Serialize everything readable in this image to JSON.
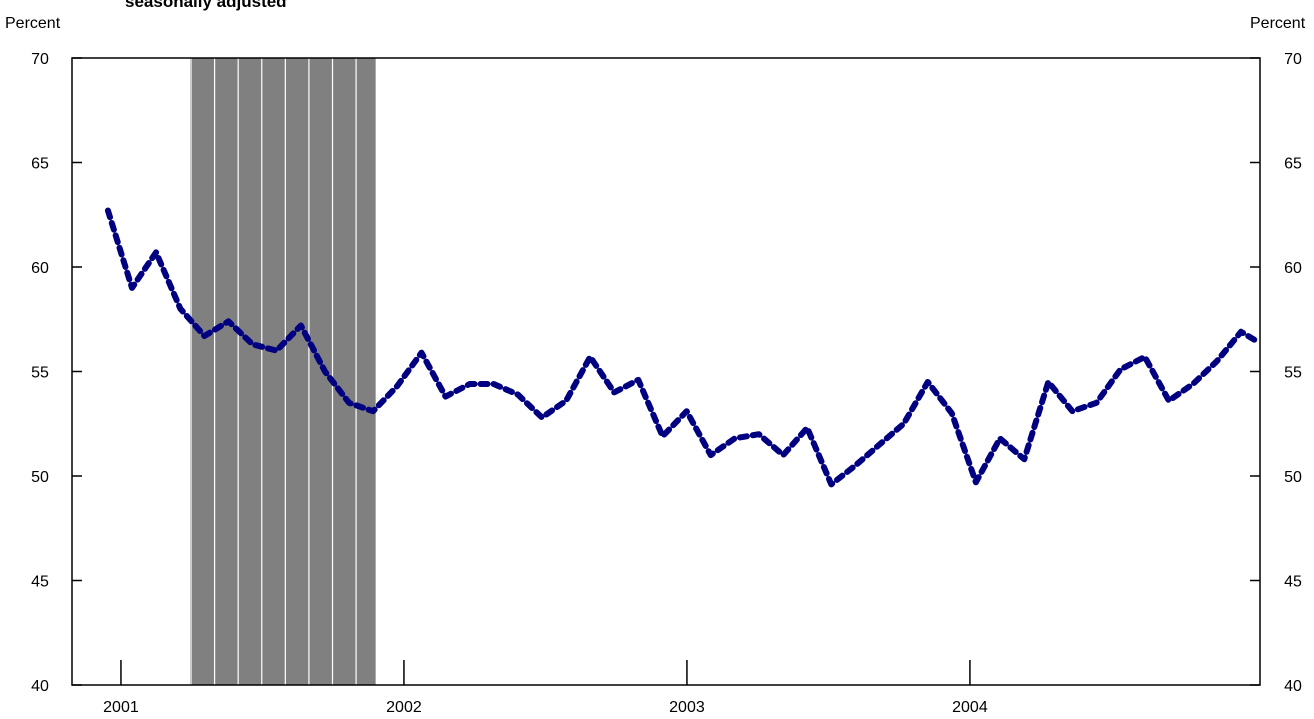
{
  "chart_data": {
    "type": "line",
    "title": "seasonally adjusted",
    "y_label": "Percent",
    "y2_label": "Percent",
    "x": [
      2000.954,
      2001.039,
      2001.124,
      2001.21,
      2001.295,
      2001.38,
      2001.465,
      2001.55,
      2001.636,
      2001.721,
      2001.806,
      2001.891,
      2001.976,
      2002.062,
      2002.147,
      2002.232,
      2002.317,
      2002.402,
      2002.488,
      2002.573,
      2002.658,
      2002.743,
      2002.828,
      2002.914,
      2002.999,
      2003.084,
      2003.169,
      2003.254,
      2003.34,
      2003.425,
      2003.51,
      2003.595,
      2003.68,
      2003.766,
      2003.851,
      2003.936,
      2004.021,
      2004.106,
      2004.192,
      2004.277,
      2004.362,
      2004.447,
      2004.532,
      2004.618,
      2004.703,
      2004.788,
      2004.873,
      2004.958,
      2005.02
    ],
    "series": [
      {
        "color": "#000080",
        "values": [
          62.7,
          59.0,
          60.7,
          58.0,
          56.7,
          57.4,
          56.3,
          56.0,
          57.2,
          55.0,
          53.5,
          53.1,
          54.3,
          55.9,
          53.8,
          54.4,
          54.4,
          53.9,
          52.8,
          53.6,
          55.7,
          54.0,
          54.6,
          51.9,
          53.1,
          51.0,
          51.8,
          52.0,
          51.0,
          52.3,
          49.6,
          50.5,
          51.5,
          52.5,
          54.5,
          53.0,
          49.7,
          51.8,
          50.8,
          54.5,
          53.1,
          53.5,
          55.1,
          55.7,
          53.6,
          54.4,
          55.5,
          56.9,
          56.4
        ]
      }
    ],
    "shaded_range": [
      2001.244,
      2001.9
    ],
    "shade_color": "#808080",
    "xlim": [
      2000.827,
      2005.025
    ],
    "xticks": [
      2001,
      2002,
      2003,
      2004
    ],
    "ylim": [
      40,
      70
    ],
    "yticks": [
      40,
      45,
      50,
      55,
      60,
      65,
      70
    ],
    "y2lim": [
      40,
      70
    ],
    "y2ticks": [
      40,
      45,
      50,
      55,
      60,
      65,
      70
    ]
  }
}
